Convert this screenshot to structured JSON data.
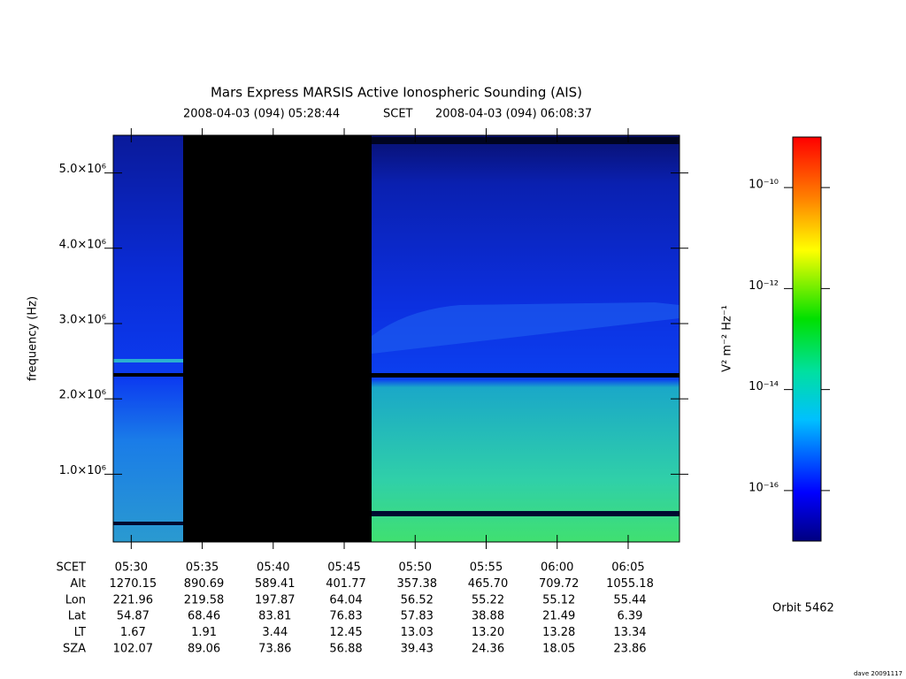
{
  "chart_data": {
    "type": "spectrogram",
    "title": "Mars Express MARSIS Active Ionospheric Sounding (AIS)",
    "start_time": "2008-04-03 (094) 05:28:44",
    "time_system": "SCET",
    "end_time": "2008-04-03 (094) 06:08:37",
    "ylabel": "frequency (Hz)",
    "xlim": [
      "05:28:44",
      "06:08:37"
    ],
    "xticks": [
      "05:30",
      "05:35",
      "05:40",
      "05:45",
      "05:50",
      "05:55",
      "06:00",
      "06:05"
    ],
    "ylim": [
      100000,
      5500000
    ],
    "yticks": [
      {
        "value": 1000000,
        "label": "1.0×10⁶"
      },
      {
        "value": 2000000,
        "label": "2.0×10⁶"
      },
      {
        "value": 3000000,
        "label": "3.0×10⁶"
      },
      {
        "value": 4000000,
        "label": "4.0×10⁶"
      },
      {
        "value": 5000000,
        "label": "5.0×10⁶"
      }
    ],
    "colorbar": {
      "label": "V² m⁻² Hz⁻¹",
      "log_scale": true,
      "clim": [
        1e-17,
        1e-09
      ],
      "ticks": [
        {
          "value": 1e-10,
          "label": "10⁻¹⁰"
        },
        {
          "value": 1e-12,
          "label": "10⁻¹²"
        },
        {
          "value": 1e-14,
          "label": "10⁻¹⁴"
        },
        {
          "value": 1e-16,
          "label": "10⁻¹⁶"
        }
      ]
    },
    "ephemeris": {
      "time_label": "SCET",
      "rows": [
        {
          "label": "Alt",
          "values": [
            "1270.15",
            "890.69",
            "589.41",
            "401.77",
            "357.38",
            "465.70",
            "709.72",
            "1055.18"
          ]
        },
        {
          "label": "Lon",
          "values": [
            "221.96",
            "219.58",
            "197.87",
            "64.04",
            "56.52",
            "55.22",
            "55.12",
            "55.44"
          ]
        },
        {
          "label": "Lat",
          "values": [
            "54.87",
            "68.46",
            "83.81",
            "76.83",
            "57.83",
            "38.88",
            "21.49",
            "6.39"
          ]
        },
        {
          "label": "LT",
          "values": [
            "1.67",
            "1.91",
            "3.44",
            "12.45",
            "13.03",
            "13.20",
            "13.28",
            "13.34"
          ]
        },
        {
          "label": "SZA",
          "values": [
            "102.07",
            "89.06",
            "73.86",
            "56.88",
            "39.43",
            "24.36",
            "18.05",
            "23.86"
          ]
        }
      ]
    },
    "orbit": "Orbit 5462",
    "credit": "dave 20091117"
  }
}
